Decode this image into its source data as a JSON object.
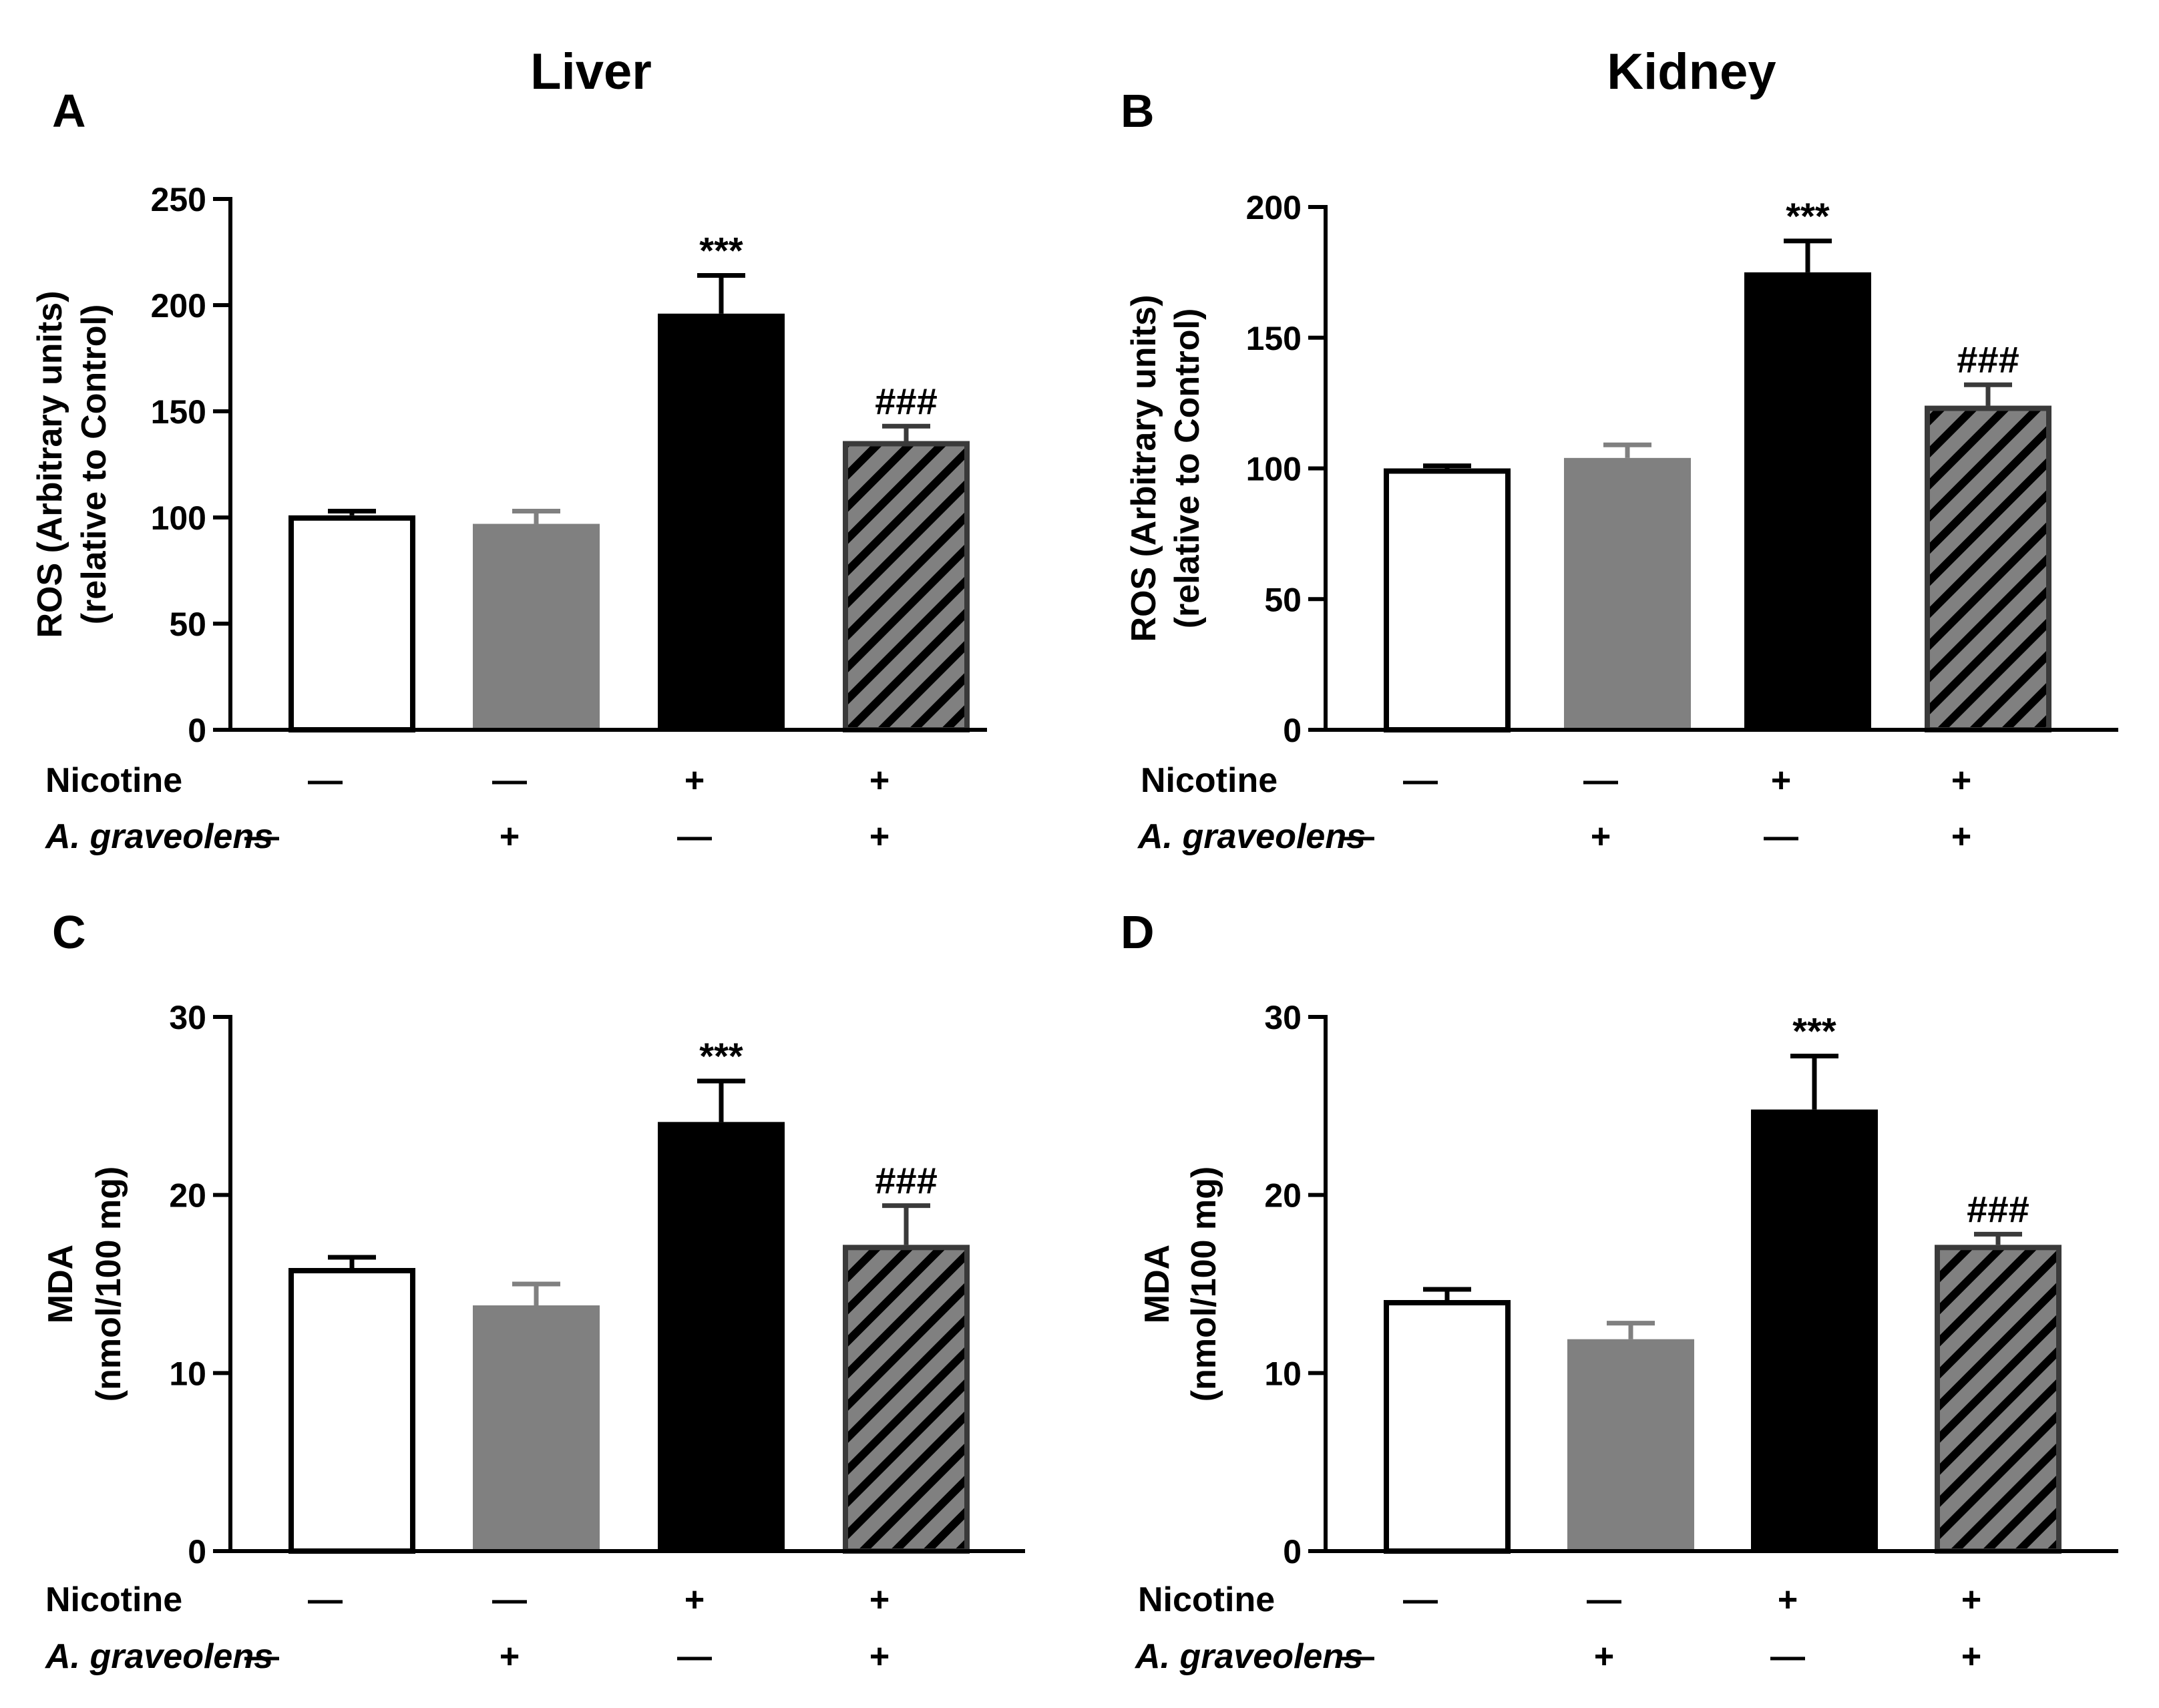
{
  "figure": {
    "row_labels": {
      "nicotine": "Nicotine",
      "graveolens": "A. graveolens"
    },
    "symbols": {
      "absent": "—",
      "present": "+"
    },
    "group_colors": {
      "control": "#ffffff",
      "graveolens": "#808080",
      "nicotine": "#000000",
      "combo_fill": "#808080",
      "combo_hatch": "#000000",
      "combo_edge": "#3a3a3a"
    }
  },
  "chart_data": [
    {
      "id": "A",
      "panel_letter": "A",
      "title": "Liver",
      "type": "bar",
      "ylabel_line1": "ROS (Arbitrary units)",
      "ylabel_line2": "(relative to Control)",
      "ylim": [
        0,
        250
      ],
      "yticks": [
        "0",
        "50",
        "100",
        "150",
        "200",
        "250"
      ],
      "groups": [
        "Control",
        "A. graveolens",
        "Nicotine",
        "Nicotine + A. graveolens"
      ],
      "values": [
        101,
        97,
        196,
        136
      ],
      "errors": [
        2,
        6,
        18,
        7
      ],
      "annotations": [
        "",
        "",
        "***",
        "###"
      ],
      "nicotine": [
        "—",
        "—",
        "+",
        "+"
      ],
      "graveolens": [
        "—",
        "+",
        "—",
        "+"
      ]
    },
    {
      "id": "B",
      "panel_letter": "B",
      "title": "Kidney",
      "type": "bar",
      "ylabel_line1": "ROS (Arbitrary units)",
      "ylabel_line2": "(relative to Control)",
      "ylim": [
        0,
        200
      ],
      "yticks": [
        "0",
        "50",
        "100",
        "150",
        "200"
      ],
      "groups": [
        "Control",
        "A. graveolens",
        "Nicotine",
        "Nicotine + A. graveolens"
      ],
      "values": [
        100,
        104,
        175,
        124
      ],
      "errors": [
        1,
        5,
        12,
        8
      ],
      "annotations": [
        "",
        "",
        "***",
        "###"
      ],
      "nicotine": [
        "—",
        "—",
        "+",
        "+"
      ],
      "graveolens": [
        "—",
        "+",
        "—",
        "+"
      ]
    },
    {
      "id": "C",
      "panel_letter": "C",
      "title": "",
      "type": "bar",
      "ylabel_line1": "MDA",
      "ylabel_line2": "(nmol/100 mg)",
      "ylim": [
        0,
        30
      ],
      "yticks": [
        "0",
        "10",
        "20",
        "30"
      ],
      "groups": [
        "Control",
        "A. graveolens",
        "Nicotine",
        "Nicotine + A. graveolens"
      ],
      "values": [
        15.9,
        13.8,
        24.1,
        17.2
      ],
      "errors": [
        0.6,
        1.2,
        2.3,
        2.2
      ],
      "annotations": [
        "",
        "",
        "***",
        "###"
      ],
      "nicotine": [
        "—",
        "—",
        "+",
        "+"
      ],
      "graveolens": [
        "—",
        "+",
        "—",
        "+"
      ]
    },
    {
      "id": "D",
      "panel_letter": "D",
      "title": "",
      "type": "bar",
      "ylabel_line1": "MDA",
      "ylabel_line2": "(nmol/100 mg)",
      "ylim": [
        0,
        30
      ],
      "yticks": [
        "0",
        "10",
        "20",
        "30"
      ],
      "groups": [
        "Control",
        "A. graveolens",
        "Nicotine",
        "Nicotine + A. graveolens"
      ],
      "values": [
        14.1,
        11.9,
        24.8,
        17.2
      ],
      "errors": [
        0.6,
        0.9,
        3.0,
        0.6
      ],
      "annotations": [
        "",
        "",
        "***",
        "###"
      ],
      "nicotine": [
        "—",
        "—",
        "+",
        "+"
      ],
      "graveolens": [
        "—",
        "+",
        "—",
        "+"
      ]
    }
  ]
}
